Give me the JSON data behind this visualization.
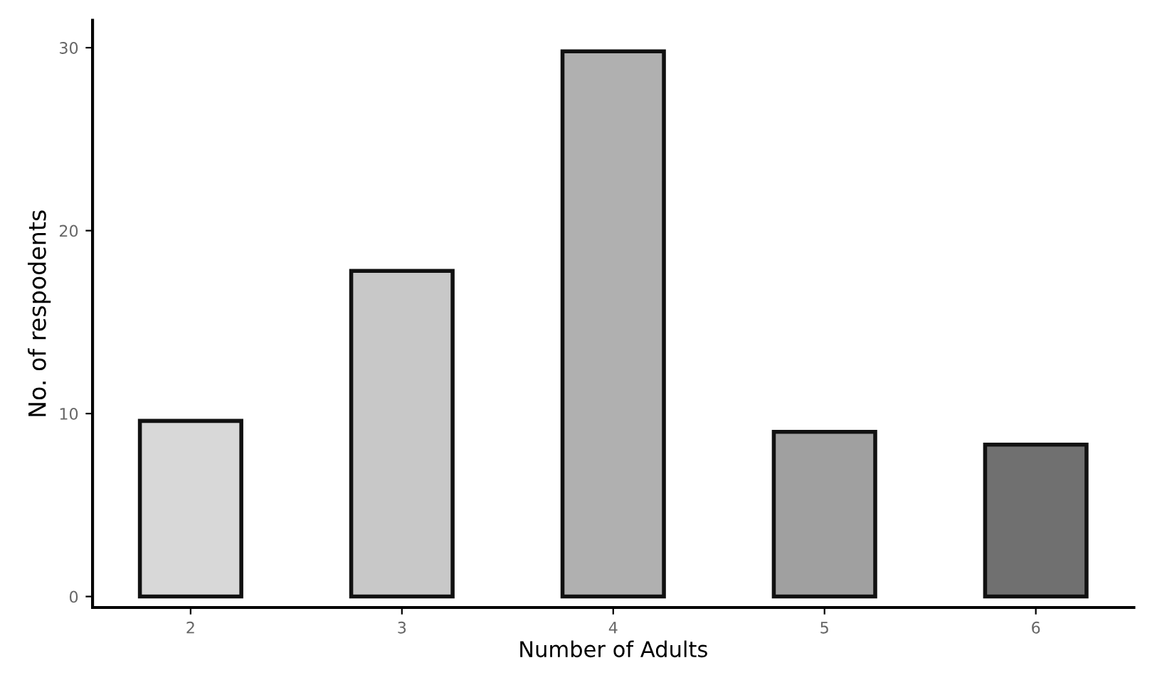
{
  "chart_data": {
    "type": "bar",
    "xlabel": "Number of Adults",
    "ylabel": "No. of respodents",
    "categories": [
      "2",
      "3",
      "4",
      "5",
      "6"
    ],
    "values": [
      9.6,
      17.8,
      29.8,
      9,
      8.3
    ],
    "colors": [
      "#d8d8d8",
      "#c8c8c8",
      "#b0b0b0",
      "#a0a0a0",
      "#707070"
    ],
    "ylim": [
      -0.6,
      31.5
    ],
    "yticks": [
      0,
      10,
      20,
      30
    ],
    "grid": false
  }
}
